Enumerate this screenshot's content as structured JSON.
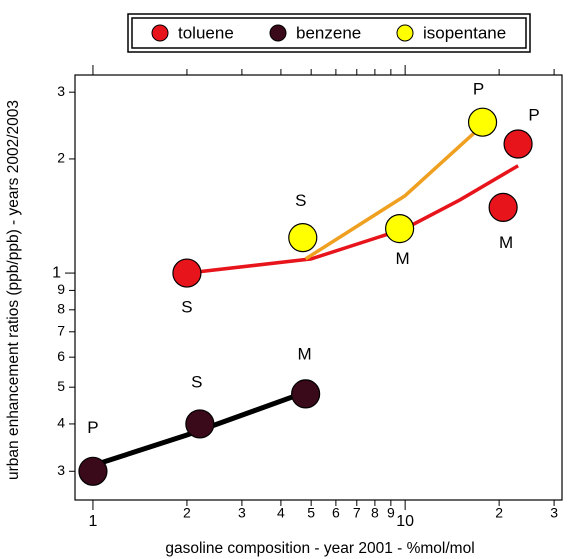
{
  "chart_data": {
    "type": "scatter",
    "log_x": true,
    "log_y": true,
    "xlabel": "gasoline composition - year  2001 - %mol/mol",
    "ylabel": "urban enhancement ratios (ppb/ppb) - years 2002/2003",
    "xlim": [
      0.876,
      31.8
    ],
    "ylim": [
      0.252,
      3.33
    ],
    "xticks": [
      1,
      2,
      3,
      4,
      5,
      6,
      7,
      8,
      9,
      10,
      {
        "value": 20,
        "label": "2"
      },
      {
        "value": 30,
        "label": "3"
      }
    ],
    "yticks": [
      {
        "value": 0.3,
        "label": "3"
      },
      {
        "value": 0.4,
        "label": "4"
      },
      {
        "value": 0.5,
        "label": "5"
      },
      {
        "value": 0.6,
        "label": "6"
      },
      {
        "value": 0.7,
        "label": "7"
      },
      {
        "value": 0.8,
        "label": "8"
      },
      {
        "value": 0.9,
        "label": "9"
      },
      1,
      2,
      3
    ],
    "series": [
      {
        "name": "toluene",
        "color": "#e8141c",
        "label_color": "#e8141c",
        "x": [
          2.0,
          20.6,
          23
        ],
        "values": [
          1.0,
          1.49,
          2.19
        ],
        "labels": [
          "S",
          "M",
          "P"
        ],
        "fit": {
          "color": "#e8141c",
          "x": [
            2,
            5,
            10,
            15,
            23
          ],
          "y": [
            1.0,
            1.09,
            1.31,
            1.56,
            1.92
          ]
        }
      },
      {
        "name": "benzene",
        "color": "#3a0a1a",
        "label_color": "#000000",
        "x": [
          1.0,
          2.2,
          4.8
        ],
        "values": [
          0.3,
          0.4,
          0.48
        ],
        "labels": [
          "P",
          "S",
          "M"
        ],
        "fit": {
          "color": "#000000",
          "x": [
            1.05,
            2,
            4.8
          ],
          "y": [
            0.315,
            0.374,
            0.485
          ]
        }
      },
      {
        "name": "isopentane",
        "color": "#ffff00",
        "label_color": "#f0a020",
        "x": [
          4.7,
          9.6,
          17.7
        ],
        "values": [
          1.24,
          1.31,
          2.5
        ],
        "labels": [
          "S",
          "M",
          "P"
        ],
        "fit": {
          "color": "#f0a020",
          "x": [
            4.8,
            10,
            17
          ],
          "y": [
            1.09,
            1.6,
            2.38
          ]
        }
      }
    ]
  }
}
